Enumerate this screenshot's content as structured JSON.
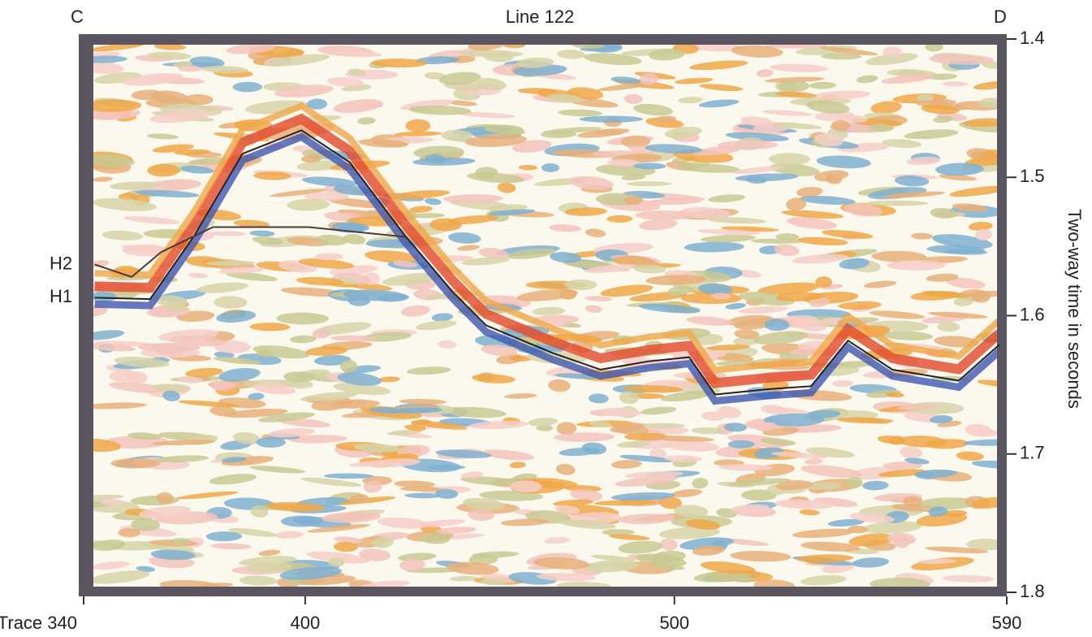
{
  "chart_data": {
    "type": "seismic",
    "title": "Line 122",
    "left_label": "C",
    "right_label": "D",
    "ylabel": "Two-way time in seconds",
    "xlim": [
      340,
      590
    ],
    "xticks": [
      {
        "value": 340,
        "label": "Trace 340"
      },
      400,
      500,
      590
    ],
    "ylim": [
      1.4,
      1.8
    ],
    "yticks": [
      1.4,
      1.5,
      1.6,
      1.7,
      1.8
    ],
    "y_inverted": true,
    "series": [
      {
        "name": "H1",
        "color": "#222222",
        "x": [
          343,
          358,
          370,
          383,
          399,
          412,
          427,
          440,
          449,
          467,
          480,
          493,
          504,
          511,
          526,
          537,
          547,
          559,
          577,
          588
        ],
        "values": [
          1.587,
          1.588,
          1.542,
          1.483,
          1.466,
          1.489,
          1.542,
          1.583,
          1.607,
          1.627,
          1.639,
          1.633,
          1.63,
          1.657,
          1.653,
          1.651,
          1.618,
          1.639,
          1.647,
          1.621
        ]
      },
      {
        "name": "H2",
        "color": "#4a3a3a",
        "x": [
          343,
          353,
          361,
          375,
          401,
          427
        ],
        "values": [
          1.563,
          1.572,
          1.554,
          1.536,
          1.536,
          1.543
        ]
      }
    ]
  }
}
